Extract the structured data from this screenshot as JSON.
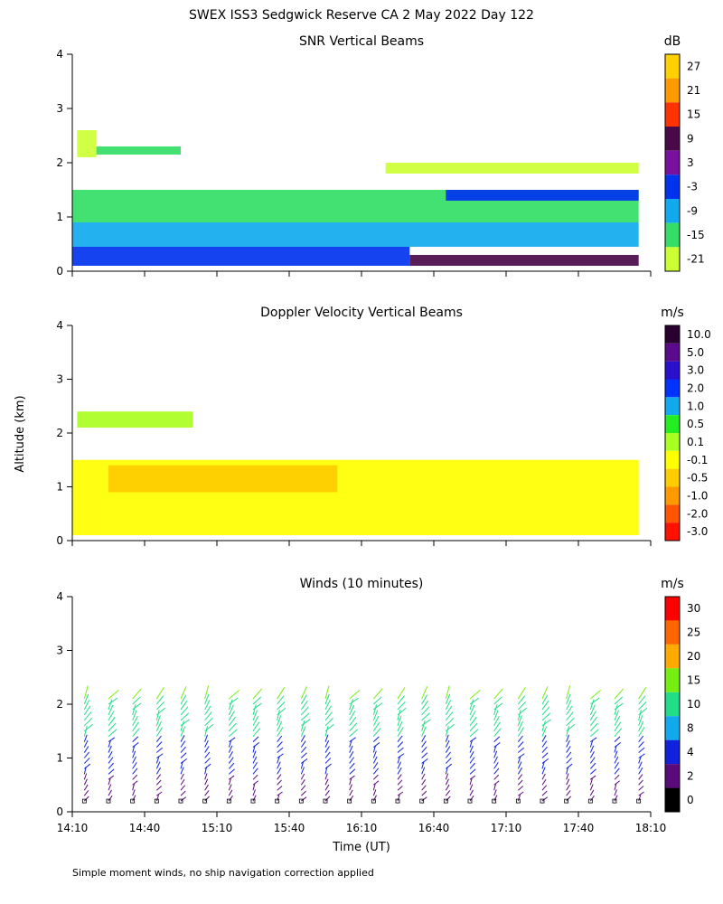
{
  "figure": {
    "title": "SWEX ISS3 Sedgwick Reserve CA   2 May 2022 Day 122",
    "footnote": "Simple moment winds, no ship navigation correction applied",
    "shared_ylabel": "Altitude (km)",
    "shared_xlabel": "Time (UT)"
  },
  "chart_data": [
    {
      "type": "heatmap",
      "title": "SNR Vertical Beams",
      "ylabel": "Altitude (km)",
      "ylim": [
        0,
        4
      ],
      "yticks": [
        "0",
        "1",
        "2",
        "3",
        "4"
      ],
      "xlim": [
        "14:10",
        "18:10"
      ],
      "colorbar": {
        "unit": "dB",
        "labels": [
          "27",
          "21",
          "15",
          "9",
          "3",
          "-3",
          "-9",
          "-15",
          "-21"
        ],
        "colors": [
          "#ffd000",
          "#ff9900",
          "#ff3300",
          "#4a0a4a",
          "#7a10a0",
          "#0033ee",
          "#11aaee",
          "#33dd66",
          "#ccff33"
        ]
      },
      "layers": [
        {
          "alt": [
            0.1,
            0.3
          ],
          "value": "9",
          "time": [
            "16:30",
            "18:05"
          ]
        },
        {
          "alt": [
            0.1,
            0.45
          ],
          "value": "-3",
          "time": [
            "14:10",
            "16:30"
          ]
        },
        {
          "alt": [
            0.45,
            0.9
          ],
          "value": "-9",
          "time": [
            "14:10",
            "18:05"
          ]
        },
        {
          "alt": [
            0.9,
            1.5
          ],
          "value": "-15",
          "time": [
            "14:10",
            "18:05"
          ]
        },
        {
          "alt": [
            1.3,
            1.5
          ],
          "value": "-3",
          "time": [
            "16:45",
            "18:05"
          ]
        },
        {
          "alt": [
            2.1,
            2.6
          ],
          "value": "-21",
          "time": [
            "14:12",
            "14:20"
          ]
        },
        {
          "alt": [
            2.15,
            2.3
          ],
          "value": "-15",
          "time": [
            "14:20",
            "14:55"
          ]
        },
        {
          "alt": [
            1.8,
            2.0
          ],
          "value": "-21",
          "time": [
            "16:20",
            "18:05"
          ]
        }
      ]
    },
    {
      "type": "heatmap",
      "title": "Doppler Velocity Vertical Beams",
      "ylabel": "Altitude (km)",
      "ylim": [
        0,
        4
      ],
      "yticks": [
        "0",
        "1",
        "2",
        "3",
        "4"
      ],
      "xlim": [
        "14:10",
        "18:10"
      ],
      "colorbar": {
        "unit": "m/s",
        "labels": [
          "10.0",
          "5.0",
          "3.0",
          "2.0",
          "1.0",
          "0.5",
          "0.1",
          "-0.1",
          "-0.5",
          "-1.0",
          "-2.0",
          "-3.0"
        ],
        "colors": [
          "#2a0030",
          "#5a0a8a",
          "#2a10cc",
          "#0033ff",
          "#11aaee",
          "#22ee22",
          "#aaff22",
          "#ffff00",
          "#ffcc00",
          "#ff9900",
          "#ff5500",
          "#ff1100"
        ]
      },
      "layers": [
        {
          "alt": [
            0.1,
            1.5
          ],
          "value": "-0.1",
          "time": [
            "14:10",
            "18:05"
          ]
        },
        {
          "alt": [
            0.9,
            1.4
          ],
          "value": "-0.5",
          "time": [
            "14:25",
            "16:00"
          ]
        },
        {
          "alt": [
            2.1,
            2.4
          ],
          "value": "0.1",
          "time": [
            "14:12",
            "15:00"
          ]
        }
      ]
    },
    {
      "type": "scatter",
      "title": "Winds (10 minutes)",
      "ylabel": "Altitude (km)",
      "ylim": [
        0,
        4
      ],
      "yticks": [
        "0",
        "1",
        "2",
        "3",
        "4"
      ],
      "xlim": [
        "14:10",
        "18:10"
      ],
      "xticks": [
        "14:10",
        "14:40",
        "15:10",
        "15:40",
        "16:10",
        "16:40",
        "17:10",
        "17:40",
        "18:10"
      ],
      "xlabel": "Time (UT)",
      "colorbar": {
        "unit": "m/s",
        "labels": [
          "30",
          "25",
          "20",
          "15",
          "10",
          "8",
          "4",
          "2",
          "0"
        ],
        "colors": [
          "#ff0000",
          "#ff6600",
          "#ffaa00",
          "#77ee11",
          "#22dd88",
          "#11aaee",
          "#1122dd",
          "#5a0a7a",
          "#000000"
        ]
      },
      "profiles_every_minutes": 10,
      "profile_times": [
        "14:15",
        "14:25",
        "14:35",
        "14:45",
        "14:55",
        "15:05",
        "15:15",
        "15:25",
        "15:35",
        "15:45",
        "15:55",
        "16:05",
        "16:15",
        "16:25",
        "16:35",
        "16:45",
        "16:55",
        "17:05",
        "17:15",
        "17:25",
        "17:35",
        "17:45",
        "17:55",
        "18:05"
      ],
      "typical_speed_by_altitude": [
        {
          "alt": 0.3,
          "speed": 2
        },
        {
          "alt": 1.0,
          "speed": 4
        },
        {
          "alt": 1.8,
          "speed": 10
        },
        {
          "alt": 2.3,
          "speed": 15
        }
      ]
    }
  ]
}
